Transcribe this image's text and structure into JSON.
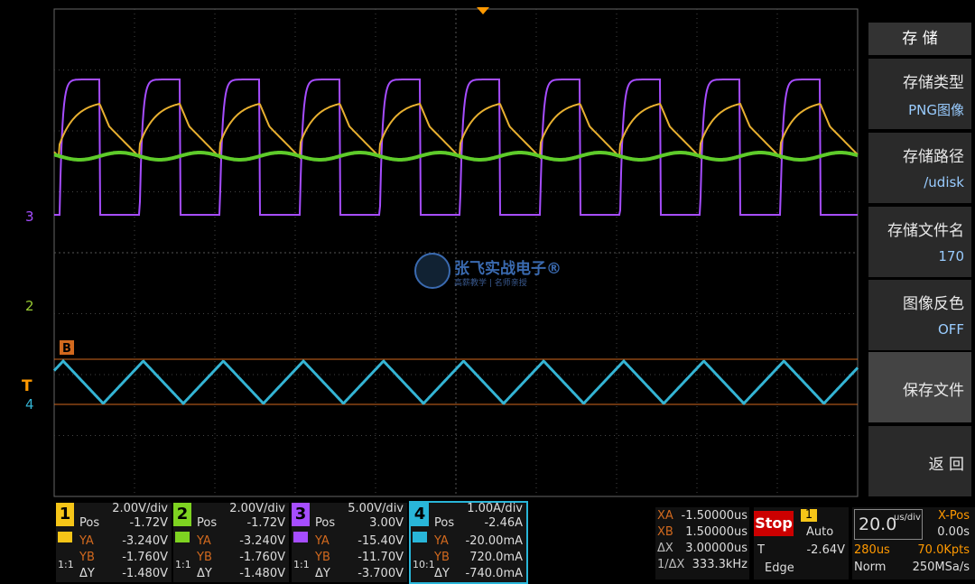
{
  "menu": {
    "title": "存 储",
    "items": [
      {
        "label": "存储类型",
        "value": "PNG图像"
      },
      {
        "label": "存储路径",
        "value": "/udisk"
      },
      {
        "label": "存储文件名",
        "value": "170"
      },
      {
        "label": "图像反色",
        "value": "OFF"
      },
      {
        "label": "保存文件"
      },
      {
        "label": "返 回"
      }
    ]
  },
  "screen": {
    "markers": {
      "ch3": "3",
      "ch2": "2",
      "ch4": "4",
      "trigger": "T",
      "cursor_b": "B"
    },
    "watermark": {
      "title": "张飞实战电子®",
      "subtitle": "高薪教学 | 名师亲授"
    }
  },
  "channels": [
    {
      "id": "1",
      "scale": "2.00V/div",
      "pos_label": "Pos",
      "pos": "-1.72V",
      "ya_label": "YA",
      "ya": "-3.240V",
      "yb_label": "YB",
      "yb": "-1.760V",
      "dy_label": "ΔY",
      "dy": "-1.480V",
      "probe": "1:1"
    },
    {
      "id": "2",
      "scale": "2.00V/div",
      "pos_label": "Pos",
      "pos": "-1.72V",
      "ya_label": "YA",
      "ya": "-3.240V",
      "yb_label": "YB",
      "yb": "-1.760V",
      "dy_label": "ΔY",
      "dy": "-1.480V",
      "probe": "1:1"
    },
    {
      "id": "3",
      "scale": "5.00V/div",
      "pos_label": "Pos",
      "pos": "3.00V",
      "ya_label": "YA",
      "ya": "-15.40V",
      "yb_label": "YB",
      "yb": "-11.70V",
      "dy_label": "ΔY",
      "dy": "-3.700V",
      "probe": "1:1"
    },
    {
      "id": "4",
      "scale": "1.00A/div",
      "pos_label": "Pos",
      "pos": "-2.46A",
      "ya_label": "YA",
      "ya": "-20.00mA",
      "yb_label": "YB",
      "yb": "720.0mA",
      "dy_label": "ΔY",
      "dy": "-740.0mA",
      "probe": "10:1"
    }
  ],
  "cursors": {
    "rows": [
      {
        "label": "XA",
        "value": "-1.50000us"
      },
      {
        "label": "XB",
        "value": "1.50000us"
      },
      {
        "label": "ΔX",
        "value": "3.00000us"
      },
      {
        "label": "1/ΔX",
        "value": "333.3kHz"
      }
    ]
  },
  "trigger": {
    "state": "Stop",
    "source": "1",
    "mode": "Auto",
    "level_label": "T",
    "level": "-2.64V",
    "type": "Edge"
  },
  "timebase": {
    "scale": "20.0",
    "unit": "us/div",
    "xpos_label": "X-Pos",
    "xpos": "0.00s",
    "length": "280us",
    "points": "70.0Kpts",
    "acq": "Norm",
    "rate": "250MSa/s"
  }
}
